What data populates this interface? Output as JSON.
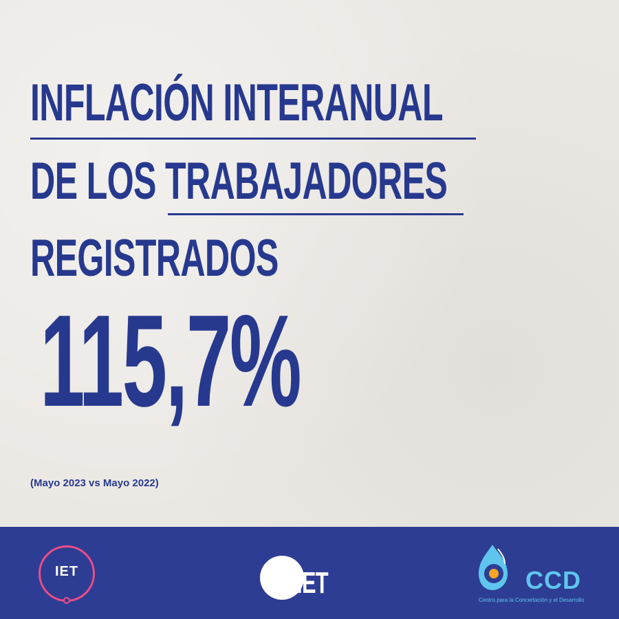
{
  "title": {
    "line1": "INFLACIÓN INTERANUAL",
    "line2": "DE LOS TRABAJADORES",
    "line3": "REGISTRADOS"
  },
  "value": "115,7%",
  "period_note": "(Mayo 2023 vs Mayo 2022)",
  "footer": {
    "iet_logo_text": "IET",
    "umet_logo_text": "MET",
    "ccd_logo_text": "CCD",
    "ccd_subtitle": "Centro para la Concertación y el Desarrollo"
  },
  "colors": {
    "primary_blue": "#27398e",
    "footer_blue": "#2e3d94",
    "iet_pink": "#ee4d86",
    "ccd_cyan": "#5ec6ee",
    "ccd_orange": "#f5a623",
    "background": "#ebe8e4"
  }
}
